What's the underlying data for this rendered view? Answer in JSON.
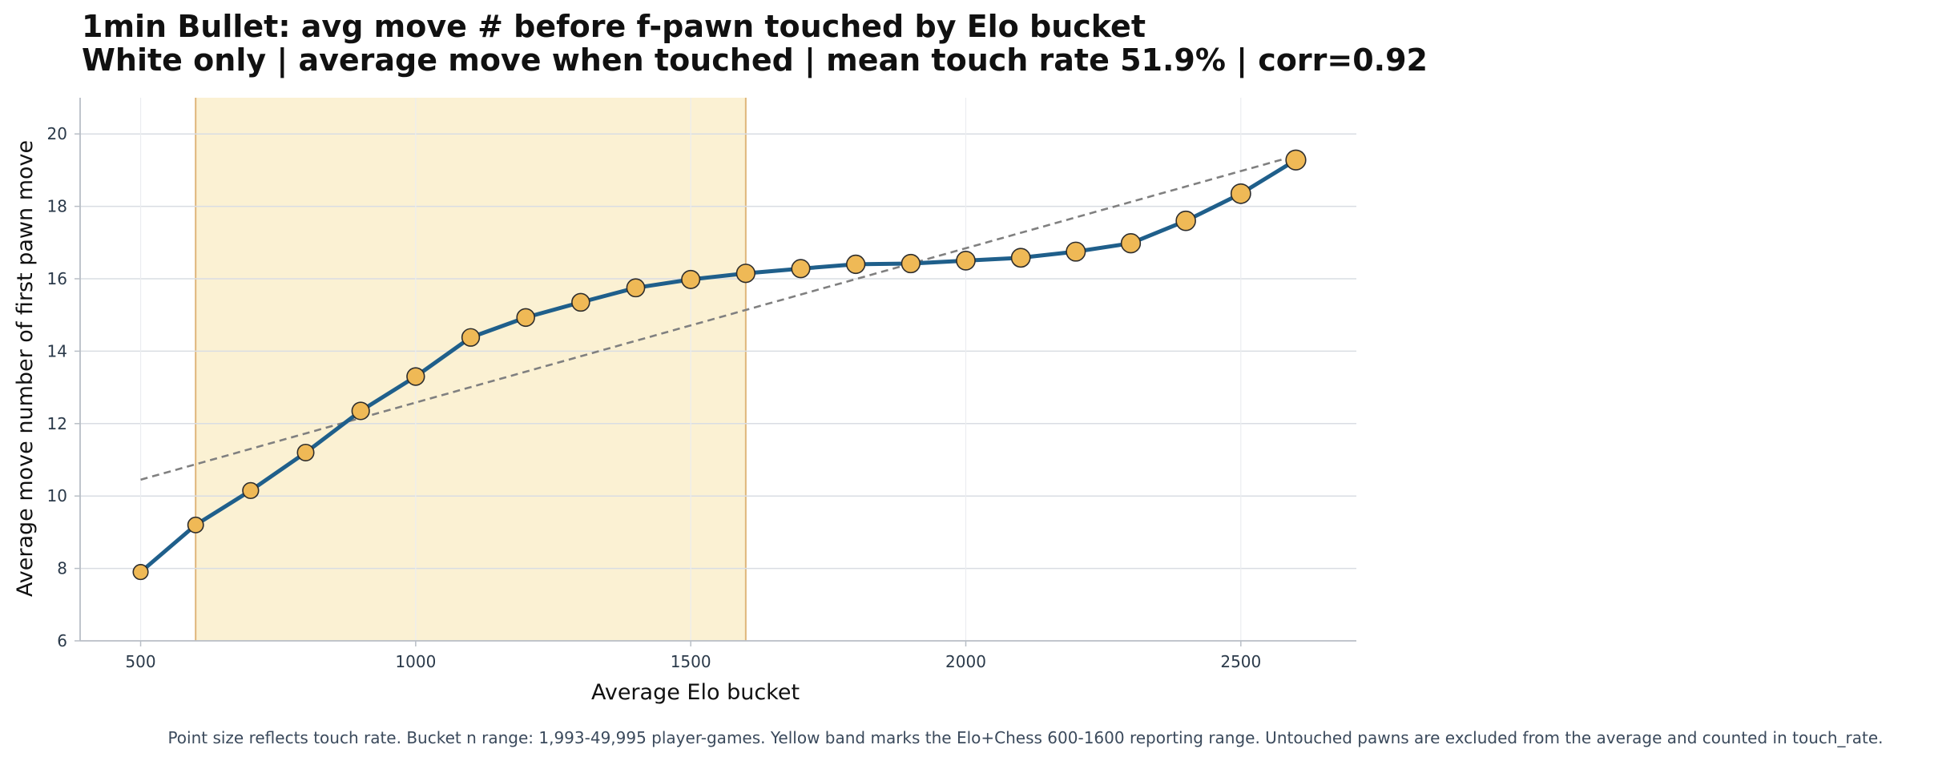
{
  "chart_data": {
    "type": "line",
    "title": "1min Bullet: avg move # before f-pawn touched by Elo bucket",
    "subtitle": "White only | average move when touched | mean touch rate 51.9% | corr=0.92",
    "xlabel": "Average Elo bucket",
    "ylabel": "Average move number of first pawn move",
    "footnote": "Point size reflects touch rate. Bucket n range: 1,993-49,995 player-games. Yellow band marks the Elo+Chess 600-1600 reporting range. Untouched pawns are excluded from the average and counted in touch_rate.",
    "xlim": [
      390,
      2710
    ],
    "ylim": [
      6,
      21
    ],
    "x_ticks": [
      500,
      1000,
      1500,
      2000,
      2500
    ],
    "y_ticks": [
      6,
      8,
      10,
      12,
      14,
      16,
      18,
      20
    ],
    "grid": true,
    "x": [
      500,
      600,
      700,
      800,
      900,
      1000,
      1100,
      1200,
      1300,
      1400,
      1500,
      1600,
      1700,
      1800,
      1900,
      2000,
      2100,
      2200,
      2300,
      2400,
      2500,
      2600
    ],
    "series": [
      {
        "values": [
          7.9,
          9.2,
          10.15,
          11.2,
          12.35,
          13.3,
          14.38,
          14.93,
          15.35,
          15.75,
          15.98,
          16.15,
          16.28,
          16.4,
          16.42,
          16.5,
          16.58,
          16.75,
          16.98,
          17.6,
          18.35,
          19.28
        ],
        "color": "#1f5f8b"
      }
    ],
    "point_size_relative": [
      0.2,
      0.3,
      0.35,
      0.45,
      0.6,
      0.62,
      0.62,
      0.65,
      0.65,
      0.68,
      0.72,
      0.75,
      0.72,
      0.75,
      0.75,
      0.8,
      0.82,
      0.85,
      0.88,
      0.92,
      0.95,
      1.0
    ],
    "trend_line": {
      "x": [
        500,
        2600
      ],
      "y": [
        10.45,
        19.4
      ],
      "color": "#808080",
      "style": "dashed"
    },
    "highlight_band": {
      "x_range": [
        600,
        1600
      ],
      "fill": "#fbf1d3",
      "edge": "#dfb57a"
    },
    "colors": {
      "line": "#1f5f8b",
      "marker_fill": "#efb956",
      "marker_edge": "#2d2d2d",
      "grid": "#d9dde3",
      "axis": "#b8bec6"
    }
  }
}
